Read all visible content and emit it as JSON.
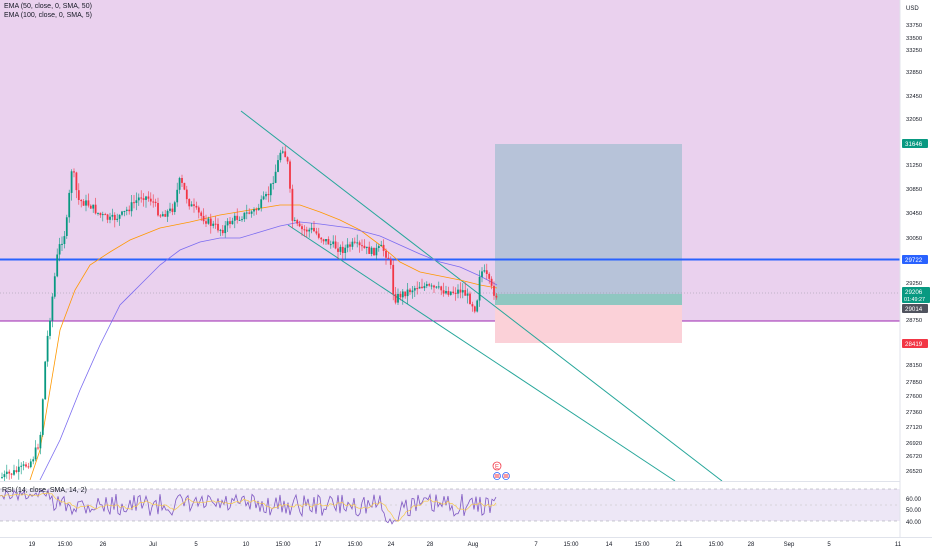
{
  "indicators": {
    "ema50_label": "EMA (50, close, 0, SMA, 50)",
    "ema100_label": "EMA (100, close, 0, SMA, 5)",
    "rsi_label": "RSI (14, close, SMA, 14, 2)"
  },
  "price_axis": {
    "currency": "USD",
    "ticks": [
      "33750",
      "33500",
      "33250",
      "32850",
      "32450",
      "32050",
      "31250",
      "30850",
      "30450",
      "30050",
      "29250",
      "28750",
      "28150",
      "27850",
      "27600",
      "27360",
      "27120",
      "26920",
      "26720",
      "26520"
    ]
  },
  "price_badges": {
    "target": "31646",
    "resistance": "29722",
    "current_price": "29206",
    "countdown": "01:49:27",
    "entry": "29014",
    "stop": "28419"
  },
  "rsi_axis": {
    "ticks": [
      "60.00",
      "50.00",
      "40.00"
    ]
  },
  "time_axis": {
    "ticks": [
      "19",
      "15:00",
      "26",
      "Jul",
      "5",
      "10",
      "15:00",
      "17",
      "15:00",
      "24",
      "28",
      "Aug",
      "7",
      "15:00",
      "14",
      "15:00",
      "21",
      "15:00",
      "28",
      "Sep",
      "5",
      "11"
    ]
  },
  "colors": {
    "zone_fill": "#ead1ee",
    "zone_line": "#9c27b0",
    "resistance_line": "#2962ff",
    "target_fill": "#b7c3d9",
    "profit_fill": "#8fc7c1",
    "stop_fill": "#fbd1d8",
    "candle_up": "#089981",
    "candle_down": "#f23645",
    "ema50": "#ff9800",
    "ema100": "#7b6cf0",
    "channel": "#26a69a",
    "rsi_line": "#7e57c2"
  },
  "icons": [
    "earnings-marker-icon",
    "us-flag-icon"
  ]
}
